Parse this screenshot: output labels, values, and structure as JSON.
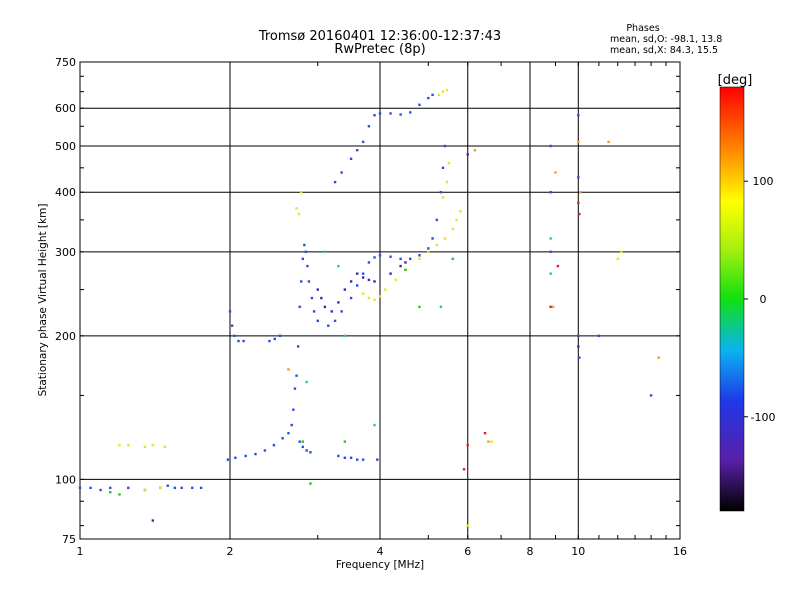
{
  "header": {
    "title": "Tromsø 20160401 12:36:00-12:37:43",
    "subtitle": "RwPretec (8p)"
  },
  "phases": {
    "heading": "Phases",
    "line_o": "mean, sd,O: -98.1, 13.8",
    "line_x": "mean, sd,X:  84.3, 15.5"
  },
  "chart_data": {
    "type": "scatter",
    "title": "Tromsø 20160401 12:36:00-12:37:43",
    "subtitle": "RwPretec (8p)",
    "xlabel": "Frequency [MHz]",
    "ylabel": "Stationary phase Virtual Height [km]",
    "x_scale": "log",
    "y_scale": "log",
    "xlim": [
      1,
      16
    ],
    "ylim": [
      75,
      750
    ],
    "x_ticks": [
      1,
      2,
      4,
      6,
      8,
      10,
      16
    ],
    "x_tick_labels": [
      "1",
      "2",
      "4",
      "6",
      "8",
      "10",
      "16"
    ],
    "y_ticks": [
      75,
      100,
      200,
      300,
      400,
      500,
      600,
      750
    ],
    "y_tick_labels": [
      "75",
      "100",
      "200",
      "300",
      "400",
      "500",
      "600",
      "750"
    ],
    "grid": true,
    "colorbar": {
      "label": "[deg]",
      "range": [
        -180,
        180
      ],
      "ticks": [
        100,
        0,
        -100
      ],
      "tick_labels": [
        "100",
        "0",
        "-100"
      ]
    },
    "phase_colors": {
      "o_mode": "#2a4fd8",
      "o_mode_dark": "#4a22b0",
      "x_mode": "#e6e61a",
      "x_mode_orange": "#f0a020",
      "green": "#30c030",
      "cyan": "#20c0d0",
      "red": "#e02020"
    },
    "series": [
      {
        "phase_deg": -100,
        "color": "#2a4fd8",
        "points": [
          [
            1.0,
            96
          ],
          [
            1.05,
            96
          ],
          [
            1.1,
            95
          ],
          [
            1.15,
            96
          ],
          [
            1.25,
            96
          ],
          [
            1.35,
            95
          ],
          [
            1.45,
            96
          ],
          [
            1.5,
            97
          ],
          [
            1.55,
            96
          ],
          [
            1.6,
            96
          ],
          [
            1.68,
            96
          ],
          [
            1.75,
            96
          ],
          [
            1.98,
            110
          ],
          [
            2.05,
            111
          ],
          [
            2.15,
            112
          ],
          [
            2.25,
            113
          ],
          [
            2.35,
            115
          ],
          [
            2.45,
            118
          ],
          [
            2.55,
            122
          ],
          [
            2.62,
            125
          ],
          [
            2.66,
            130
          ],
          [
            2.68,
            140
          ],
          [
            2.7,
            155
          ],
          [
            2.72,
            165
          ],
          [
            2.74,
            190
          ],
          [
            2.76,
            230
          ],
          [
            2.78,
            260
          ],
          [
            2.8,
            290
          ],
          [
            2.82,
            310
          ],
          [
            2.84,
            300
          ],
          [
            2.86,
            280
          ],
          [
            2.88,
            260
          ],
          [
            2.92,
            240
          ],
          [
            2.95,
            225
          ],
          [
            3.0,
            215
          ],
          [
            2.76,
            120
          ],
          [
            2.8,
            117
          ],
          [
            2.85,
            115
          ],
          [
            2.9,
            114
          ],
          [
            2.0,
            225
          ],
          [
            2.02,
            210
          ],
          [
            2.04,
            200
          ],
          [
            2.08,
            195
          ],
          [
            2.13,
            195
          ],
          [
            2.4,
            195
          ],
          [
            2.46,
            197
          ],
          [
            2.52,
            200
          ],
          [
            3.3,
            112
          ],
          [
            3.4,
            111
          ],
          [
            3.5,
            111
          ],
          [
            3.6,
            110
          ],
          [
            3.7,
            110
          ],
          [
            3.95,
            110
          ],
          [
            3.15,
            210
          ],
          [
            3.25,
            215
          ],
          [
            3.35,
            225
          ],
          [
            3.5,
            240
          ],
          [
            3.6,
            255
          ],
          [
            3.7,
            270
          ],
          [
            3.8,
            285
          ],
          [
            3.9,
            292
          ],
          [
            4.0,
            295
          ],
          [
            4.2,
            293
          ],
          [
            4.4,
            290
          ],
          [
            4.6,
            290
          ],
          [
            4.8,
            295
          ],
          [
            5.0,
            305
          ],
          [
            5.1,
            320
          ],
          [
            5.2,
            350
          ],
          [
            5.3,
            400
          ],
          [
            5.35,
            450
          ],
          [
            5.4,
            500
          ],
          [
            3.25,
            420
          ],
          [
            3.35,
            440
          ],
          [
            3.5,
            470
          ],
          [
            3.6,
            490
          ],
          [
            3.7,
            510
          ],
          [
            3.8,
            550
          ],
          [
            3.9,
            580
          ],
          [
            4.0,
            585
          ],
          [
            4.2,
            585
          ],
          [
            4.4,
            582
          ],
          [
            4.6,
            588
          ],
          [
            4.8,
            610
          ],
          [
            5.0,
            630
          ],
          [
            5.1,
            640
          ],
          [
            8.8,
            500
          ],
          [
            8.8,
            400
          ],
          [
            8.8,
            300
          ],
          [
            10.0,
            580
          ],
          [
            10.0,
            430
          ],
          [
            10.0,
            200
          ],
          [
            10.05,
            180
          ],
          [
            11.0,
            200
          ],
          [
            14.0,
            150
          ]
        ]
      },
      {
        "phase_deg": -130,
        "color": "#4a22b0",
        "points": [
          [
            3.0,
            250
          ],
          [
            3.05,
            240
          ],
          [
            3.1,
            230
          ],
          [
            3.2,
            225
          ],
          [
            3.3,
            235
          ],
          [
            3.4,
            250
          ],
          [
            3.5,
            260
          ],
          [
            3.6,
            270
          ],
          [
            3.7,
            265
          ],
          [
            3.8,
            262
          ],
          [
            3.9,
            260
          ],
          [
            4.2,
            270
          ],
          [
            4.4,
            280
          ],
          [
            4.5,
            285
          ],
          [
            1.4,
            82
          ],
          [
            6.0,
            480
          ],
          [
            10.0,
            190
          ]
        ]
      },
      {
        "phase_deg": 100,
        "color": "#e6e61a",
        "points": [
          [
            1.2,
            118
          ],
          [
            1.25,
            118
          ],
          [
            1.35,
            117
          ],
          [
            1.4,
            118
          ],
          [
            1.48,
            117
          ],
          [
            1.35,
            95
          ],
          [
            1.45,
            96
          ],
          [
            3.7,
            245
          ],
          [
            3.8,
            240
          ],
          [
            3.9,
            238
          ],
          [
            4.0,
            242
          ],
          [
            4.1,
            250
          ],
          [
            4.3,
            262
          ],
          [
            4.5,
            275
          ],
          [
            4.8,
            290
          ],
          [
            5.0,
            300
          ],
          [
            5.2,
            310
          ],
          [
            5.4,
            320
          ],
          [
            5.6,
            335
          ],
          [
            5.7,
            350
          ],
          [
            5.8,
            365
          ],
          [
            5.35,
            390
          ],
          [
            5.45,
            420
          ],
          [
            5.5,
            460
          ],
          [
            5.25,
            640
          ],
          [
            5.35,
            650
          ],
          [
            5.45,
            655
          ],
          [
            2.72,
            370
          ],
          [
            2.75,
            360
          ],
          [
            2.78,
            400
          ],
          [
            6.0,
            80
          ],
          [
            12.0,
            290
          ],
          [
            12.2,
            300
          ],
          [
            6.7,
            120
          ]
        ]
      },
      {
        "phase_deg": 130,
        "color": "#f0a020",
        "points": [
          [
            6.2,
            490
          ],
          [
            6.6,
            120
          ],
          [
            2.62,
            170
          ],
          [
            9.0,
            440
          ],
          [
            8.9,
            230
          ],
          [
            14.5,
            180
          ],
          [
            11.5,
            510
          ],
          [
            10.0,
            510
          ],
          [
            10.1,
            400
          ]
        ]
      },
      {
        "phase_deg": 20,
        "color": "#30c030",
        "points": [
          [
            1.15,
            94
          ],
          [
            1.2,
            93
          ],
          [
            2.9,
            98
          ],
          [
            2.8,
            120
          ],
          [
            3.4,
            120
          ],
          [
            5.6,
            290
          ],
          [
            4.8,
            230
          ],
          [
            4.5,
            275
          ]
        ]
      },
      {
        "phase_deg": -60,
        "color": "#20c0d0",
        "points": [
          [
            2.85,
            160
          ],
          [
            3.1,
            300
          ],
          [
            3.3,
            280
          ],
          [
            3.4,
            200
          ],
          [
            5.3,
            230
          ],
          [
            8.8,
            320
          ],
          [
            8.8,
            270
          ],
          [
            3.9,
            130
          ]
        ]
      },
      {
        "phase_deg": 170,
        "color": "#e02020",
        "points": [
          [
            6.5,
            125
          ],
          [
            6.0,
            118
          ],
          [
            5.9,
            105
          ],
          [
            8.8,
            230
          ],
          [
            9.1,
            280
          ],
          [
            10.0,
            380
          ],
          [
            10.05,
            360
          ]
        ]
      }
    ]
  }
}
